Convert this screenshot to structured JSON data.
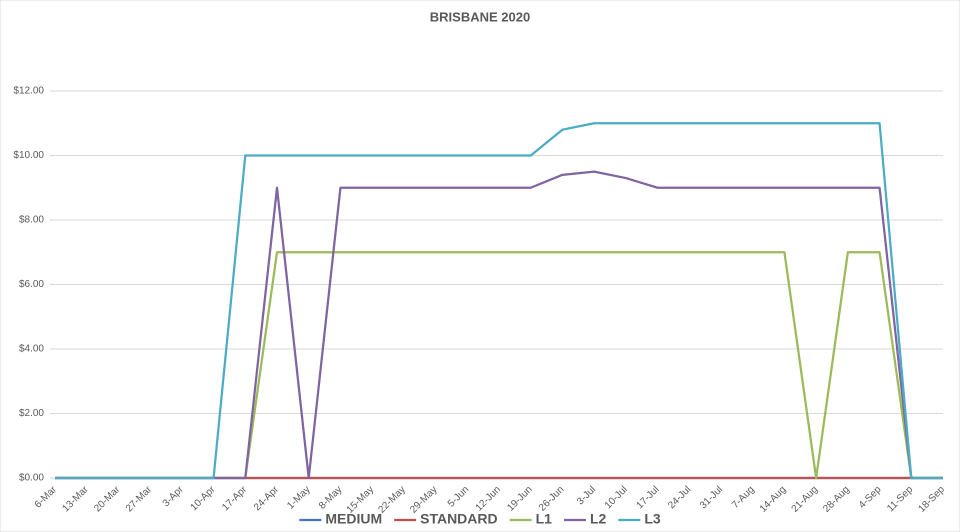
{
  "chart_data": {
    "type": "line",
    "title": "BRISBANE 2020",
    "categories": [
      "6-Mar",
      "13-Mar",
      "20-Mar",
      "27-Mar",
      "3-Apr",
      "10-Apr",
      "17-Apr",
      "24-Apr",
      "1-May",
      "8-May",
      "15-May",
      "22-May",
      "29-May",
      "5-Jun",
      "12-Jun",
      "19-Jun",
      "26-Jun",
      "3-Jul",
      "10-Jul",
      "17-Jul",
      "24-Jul",
      "31-Jul",
      "7-Aug",
      "14-Aug",
      "21-Aug",
      "28-Aug",
      "4-Sep",
      "11-Sep",
      "18-Sep"
    ],
    "series": [
      {
        "name": "MEDIUM",
        "color": "#4472c4",
        "values": [
          0,
          0,
          0,
          0,
          0,
          0,
          0,
          0,
          0,
          0,
          0,
          0,
          0,
          0,
          0,
          0,
          0,
          0,
          0,
          0,
          0,
          0,
          0,
          0,
          0,
          0,
          0,
          0,
          0
        ]
      },
      {
        "name": "STANDARD",
        "color": "#c0504d",
        "values": [
          0,
          0,
          0,
          0,
          0,
          0,
          0,
          0,
          0,
          0,
          0,
          0,
          0,
          0,
          0,
          0,
          0,
          0,
          0,
          0,
          0,
          0,
          0,
          0,
          0,
          0,
          0,
          0,
          0
        ]
      },
      {
        "name": "L1",
        "color": "#9bbb59",
        "values": [
          0,
          0,
          0,
          0,
          0,
          0,
          0,
          7,
          7,
          7,
          7,
          7,
          7,
          7,
          7,
          7,
          7,
          7,
          7,
          7,
          7,
          7,
          7,
          7,
          0,
          7,
          7,
          0,
          0
        ]
      },
      {
        "name": "L2",
        "color": "#8064a2",
        "values": [
          0,
          0,
          0,
          0,
          0,
          0,
          0,
          9,
          0,
          9,
          9,
          9,
          9,
          9,
          9,
          9,
          9.4,
          9.5,
          9.3,
          9,
          9,
          9,
          9,
          9,
          9,
          9,
          9,
          0,
          0
        ]
      },
      {
        "name": "L3",
        "color": "#4bacc6",
        "values": [
          0,
          0,
          0,
          0,
          0,
          0,
          10,
          10,
          10,
          10,
          10,
          10,
          10,
          10,
          10,
          10,
          10.8,
          11,
          11,
          11,
          11,
          11,
          11,
          11,
          11,
          11,
          11,
          0,
          0
        ]
      }
    ],
    "ylim": [
      0,
      12
    ],
    "yticks": [
      {
        "value": 0,
        "label": "$0.00"
      },
      {
        "value": 2,
        "label": "$2.00"
      },
      {
        "value": 4,
        "label": "$4.00"
      },
      {
        "value": 6,
        "label": "$6.00"
      },
      {
        "value": 8,
        "label": "$8.00"
      },
      {
        "value": 10,
        "label": "$10.00"
      },
      {
        "value": 12,
        "label": "$12.00"
      }
    ],
    "grid": true,
    "legend": "bottom"
  }
}
